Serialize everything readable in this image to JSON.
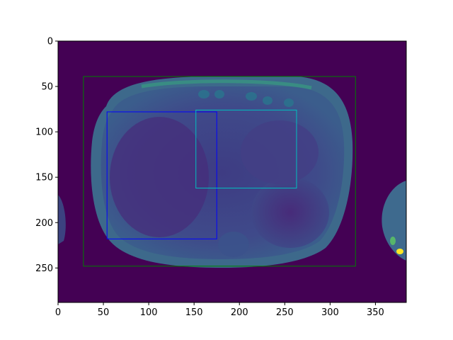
{
  "image": {
    "x_ticks": [
      "0",
      "50",
      "100",
      "150",
      "200",
      "250",
      "300",
      "350"
    ],
    "y_ticks": [
      "0",
      "50",
      "100",
      "150",
      "200",
      "250"
    ],
    "x_range": [
      0,
      384
    ],
    "y_range": [
      0,
      288
    ],
    "colormap": "viridis",
    "background_color": "#440154"
  },
  "chart_data": {
    "type": "image",
    "x_range": [
      0,
      384
    ],
    "y_range": [
      0,
      288
    ],
    "x_ticks": [
      0,
      50,
      100,
      150,
      200,
      250,
      300,
      350
    ],
    "y_ticks": [
      0,
      50,
      100,
      150,
      200,
      250
    ],
    "boxes": [
      {
        "name": "green",
        "color": "#008000",
        "x0": 28,
        "y0": 39,
        "x1": 328,
        "y1": 248
      },
      {
        "name": "blue",
        "color": "#0000ff",
        "x0": 54,
        "y0": 78,
        "x1": 175,
        "y1": 218
      },
      {
        "name": "cyan",
        "color": "#00bfbf",
        "x0": 152,
        "y0": 76,
        "x1": 263,
        "y1": 162
      }
    ]
  }
}
